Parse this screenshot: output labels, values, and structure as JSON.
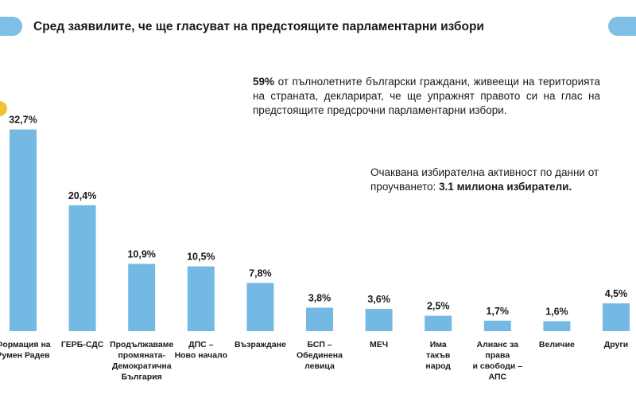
{
  "header": {
    "title": "Сред заявилите, че ще гласуват на предстоящите парламентарни избори"
  },
  "notes": {
    "turnout_pct": "59%",
    "turnout_text": " от пълнолетните български граждани, живеещи на територията на страната, декларират, че ще упражнят правото си на глас на предстоящите предсрочни парламентарни избори.",
    "expected_text": "Очаквана избирателна активност по данни от проучването: ",
    "expected_value": "3.1 милиона избиратели."
  },
  "colors": {
    "bar": "#74b9e3",
    "accent_pill": "#7fbfe6",
    "accent_dot": "#f1c232"
  },
  "chart_data": {
    "type": "bar",
    "title": "Сред заявилите, че ще гласуват на предстоящите парламентарни избори",
    "xlabel": "",
    "ylabel": "",
    "ylim": [
      0,
      35
    ],
    "grid": false,
    "categories": [
      [
        "Формация на",
        "Румен Радев"
      ],
      [
        "ГЕРБ-СДС"
      ],
      [
        "Продължаваме",
        "промяната-",
        "Демократична",
        "България"
      ],
      [
        "ДПС –",
        "Ново начало"
      ],
      [
        "Възраждане"
      ],
      [
        "БСП –",
        "Обединена",
        "левица"
      ],
      [
        "МЕЧ"
      ],
      [
        "Има",
        "такъв",
        "народ"
      ],
      [
        "Алианс за",
        "права",
        "и свободи –",
        "АПС"
      ],
      [
        "Величие"
      ],
      [
        "Други"
      ]
    ],
    "values": [
      32.7,
      20.4,
      10.9,
      10.5,
      7.8,
      3.8,
      3.6,
      2.5,
      1.7,
      1.6,
      4.5
    ],
    "value_labels": [
      "32,7%",
      "20,4%",
      "10,9%",
      "10,5%",
      "7,8%",
      "3,8%",
      "3,6%",
      "2,5%",
      "1,7%",
      "1,6%",
      "4,5%"
    ]
  }
}
